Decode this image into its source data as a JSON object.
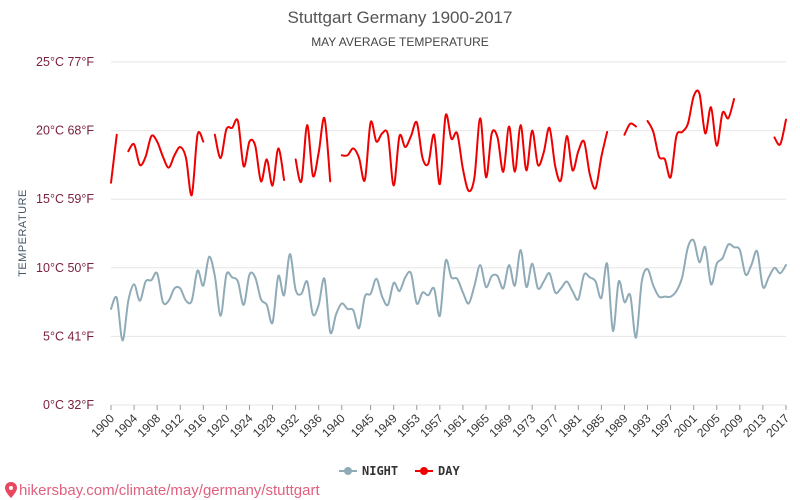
{
  "chart_data": {
    "type": "line",
    "title": "Stuttgart Germany 1900-2017",
    "subtitle": "MAY AVERAGE TEMPERATURE",
    "ylabel": "TEMPERATURE",
    "xlabel": "",
    "ylim": [
      0,
      25
    ],
    "xlim": [
      1900,
      2017
    ],
    "y_ticks": [
      {
        "value": 0,
        "label": "0°C 32°F"
      },
      {
        "value": 5,
        "label": "5°C 41°F"
      },
      {
        "value": 10,
        "label": "10°C 50°F"
      },
      {
        "value": 15,
        "label": "15°C 59°F"
      },
      {
        "value": 20,
        "label": "20°C 68°F"
      },
      {
        "value": 25,
        "label": "25°C 77°F"
      }
    ],
    "x_ticks": [
      1900,
      1904,
      1908,
      1912,
      1916,
      1920,
      1924,
      1928,
      1932,
      1936,
      1940,
      1945,
      1949,
      1953,
      1957,
      1961,
      1965,
      1969,
      1973,
      1977,
      1981,
      1985,
      1989,
      1993,
      1997,
      2001,
      2005,
      2009,
      2013,
      2017
    ],
    "grid": true,
    "legend_position": "bottom-center",
    "series": [
      {
        "name": "NIGHT",
        "color": "#90abb8",
        "x": [
          1900,
          1901,
          1902,
          1903,
          1904,
          1905,
          1906,
          1907,
          1908,
          1909,
          1910,
          1911,
          1912,
          1913,
          1914,
          1915,
          1916,
          1917,
          1918,
          1919,
          1920,
          1921,
          1922,
          1923,
          1924,
          1925,
          1926,
          1927,
          1928,
          1929,
          1930,
          1931,
          1932,
          1933,
          1934,
          1935,
          1936,
          1937,
          1938,
          1939,
          1940,
          1941,
          1942,
          1943,
          1944,
          1945,
          1946,
          1947,
          1948,
          1949,
          1950,
          1951,
          1952,
          1953,
          1954,
          1955,
          1956,
          1957,
          1958,
          1959,
          1960,
          1961,
          1962,
          1963,
          1964,
          1965,
          1966,
          1967,
          1968,
          1969,
          1970,
          1971,
          1972,
          1973,
          1974,
          1975,
          1976,
          1977,
          1978,
          1979,
          1980,
          1981,
          1982,
          1983,
          1984,
          1985,
          1986,
          1987,
          1988,
          1989,
          1990,
          1991,
          1992,
          1993,
          1994,
          1995,
          1996,
          1997,
          1998,
          1999,
          2000,
          2001,
          2002,
          2003,
          2004,
          2005,
          2006,
          2007,
          2008,
          2009,
          2010,
          2011,
          2012,
          2013,
          2014,
          2015,
          2016,
          2017
        ],
        "values": [
          7.0,
          7.8,
          4.7,
          7.6,
          8.8,
          7.6,
          9.0,
          9.1,
          9.6,
          7.5,
          7.6,
          8.5,
          8.5,
          7.6,
          7.6,
          9.8,
          8.7,
          10.8,
          9.4,
          6.5,
          9.5,
          9.3,
          9.0,
          7.3,
          9.5,
          9.3,
          7.7,
          7.3,
          6.0,
          9.4,
          8.0,
          11.0,
          8.4,
          8.1,
          9.0,
          6.6,
          7.3,
          9.2,
          5.3,
          6.6,
          7.4,
          7.0,
          6.9,
          5.6,
          7.9,
          8.1,
          9.2,
          7.9,
          7.3,
          8.9,
          8.3,
          9.3,
          9.6,
          7.4,
          8.2,
          8.0,
          8.5,
          6.5,
          10.5,
          9.3,
          9.2,
          8.2,
          7.4,
          8.7,
          10.2,
          8.6,
          9.4,
          9.4,
          8.5,
          10.2,
          8.7,
          11.3,
          8.6,
          10.3,
          8.5,
          9.0,
          9.6,
          8.2,
          8.5,
          9.0,
          8.3,
          7.7,
          9.5,
          9.3,
          9.0,
          7.8,
          10.3,
          5.4,
          9.0,
          7.5,
          8.0,
          4.9,
          9.0,
          9.9,
          8.7,
          7.9,
          7.9,
          7.9,
          8.3,
          9.3,
          11.5,
          12.0,
          10.4,
          11.5,
          8.8,
          10.3,
          10.7,
          11.7,
          11.5,
          11.3,
          9.5,
          10.2,
          11.2,
          8.6,
          9.3,
          10.0,
          9.6,
          10.2
        ]
      },
      {
        "name": "DAY",
        "color": "#ee0000",
        "x": [
          1900,
          1901,
          1902,
          1903,
          1904,
          1905,
          1906,
          1907,
          1908,
          1909,
          1910,
          1911,
          1912,
          1913,
          1914,
          1915,
          1916,
          1917,
          1918,
          1919,
          1920,
          1921,
          1922,
          1923,
          1924,
          1925,
          1926,
          1927,
          1928,
          1929,
          1930,
          1931,
          1932,
          1933,
          1934,
          1935,
          1936,
          1937,
          1938,
          1939,
          1940,
          1941,
          1942,
          1943,
          1944,
          1945,
          1946,
          1947,
          1948,
          1949,
          1950,
          1951,
          1952,
          1953,
          1954,
          1955,
          1956,
          1957,
          1958,
          1959,
          1960,
          1961,
          1962,
          1963,
          1964,
          1965,
          1966,
          1967,
          1968,
          1969,
          1970,
          1971,
          1972,
          1973,
          1974,
          1975,
          1976,
          1977,
          1978,
          1979,
          1980,
          1981,
          1982,
          1983,
          1984,
          1985,
          1986,
          1987,
          1988,
          1989,
          1990,
          1991,
          1992,
          1993,
          1994,
          1995,
          1996,
          1997,
          1998,
          1999,
          2000,
          2001,
          2002,
          2003,
          2004,
          2005,
          2006,
          2007,
          2008,
          2009,
          2010,
          2011,
          2012,
          2013,
          2014,
          2015,
          2016,
          2017
        ],
        "values": [
          16.2,
          19.7,
          null,
          18.5,
          19.0,
          17.5,
          18.1,
          19.6,
          19.2,
          18.1,
          17.3,
          18.2,
          18.8,
          18.0,
          15.3,
          19.7,
          19.2,
          null,
          19.7,
          18.0,
          20.1,
          20.2,
          20.7,
          17.4,
          19.2,
          18.9,
          16.3,
          17.9,
          16.0,
          18.7,
          16.4,
          null,
          17.9,
          16.3,
          20.4,
          16.7,
          18.4,
          20.9,
          16.3,
          null,
          18.2,
          18.2,
          18.7,
          18.0,
          16.4,
          20.6,
          19.2,
          19.8,
          19.7,
          16.0,
          19.6,
          18.8,
          19.6,
          20.6,
          18.0,
          17.6,
          19.7,
          16.1,
          21.1,
          19.4,
          19.8,
          17.2,
          15.6,
          16.6,
          20.9,
          16.6,
          19.8,
          19.5,
          17.0,
          20.3,
          17.0,
          20.4,
          17.1,
          20.0,
          17.5,
          18.4,
          20.2,
          17.4,
          16.4,
          19.6,
          17.1,
          18.5,
          19.2,
          16.8,
          15.8,
          18.1,
          19.9,
          null,
          null,
          19.7,
          20.5,
          20.3,
          null,
          20.7,
          19.9,
          18.1,
          17.9,
          16.6,
          19.6,
          19.9,
          20.5,
          22.5,
          22.7,
          19.8,
          21.7,
          18.9,
          21.3,
          20.9,
          22.3,
          null,
          null,
          null,
          null,
          null,
          null,
          19.5,
          19.0,
          20.8
        ]
      }
    ]
  },
  "watermark": "hikersbay.com/climate/may/germany/stuttgart",
  "pin_color": "#e8485f"
}
